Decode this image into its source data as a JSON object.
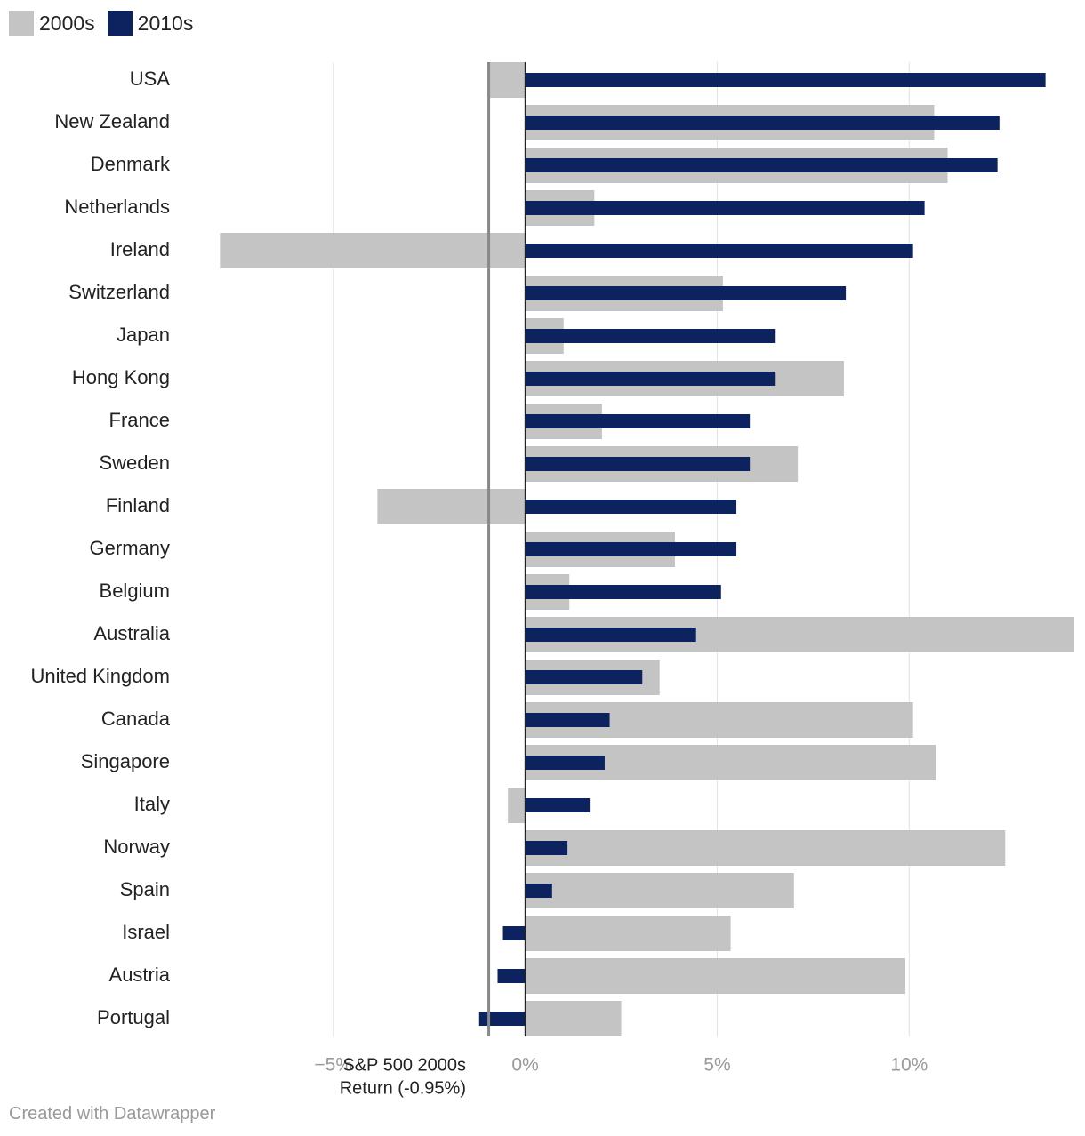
{
  "chart_data": {
    "type": "bar",
    "orientation": "horizontal",
    "categories": [
      "USA",
      "New Zealand",
      "Denmark",
      "Netherlands",
      "Ireland",
      "Switzerland",
      "Japan",
      "Hong Kong",
      "France",
      "Sweden",
      "Finland",
      "Germany",
      "Belgium",
      "Australia",
      "United Kingdom",
      "Canada",
      "Singapore",
      "Italy",
      "Norway",
      "Spain",
      "Israel",
      "Austria",
      "Portugal"
    ],
    "series": [
      {
        "name": "2000s",
        "color": "#c4c4c4",
        "values": [
          -0.95,
          10.65,
          11.0,
          1.8,
          -7.95,
          5.15,
          1.0,
          8.3,
          2.0,
          7.1,
          -3.85,
          3.9,
          1.15,
          14.3,
          3.5,
          10.1,
          10.7,
          -0.45,
          12.5,
          7.0,
          5.35,
          9.9,
          2.5
        ]
      },
      {
        "name": "2010s",
        "color": "#0d2360",
        "values": [
          13.55,
          12.35,
          12.3,
          10.4,
          10.1,
          8.35,
          6.5,
          6.5,
          5.85,
          5.85,
          5.5,
          5.5,
          5.1,
          4.45,
          3.05,
          2.2,
          2.07,
          1.68,
          1.1,
          0.7,
          -0.58,
          -0.72,
          -1.2
        ]
      }
    ],
    "xlim": [
      -9.0,
      14.3
    ],
    "x_ticks": [
      -5,
      0,
      5,
      10
    ],
    "x_tick_labels": [
      "−5%",
      "0%",
      "5%",
      "10%"
    ],
    "reference_line": {
      "value": -0.95,
      "label_line1": "S&P 500 2000s",
      "label_line2": "Return (-0.95%)"
    },
    "title": "",
    "xlabel": "",
    "ylabel": ""
  },
  "legend": {
    "items": [
      {
        "label": "2000s",
        "color": "#c4c4c4"
      },
      {
        "label": "2010s",
        "color": "#0d2360"
      }
    ]
  },
  "footer": {
    "credit": "Created with Datawrapper"
  }
}
